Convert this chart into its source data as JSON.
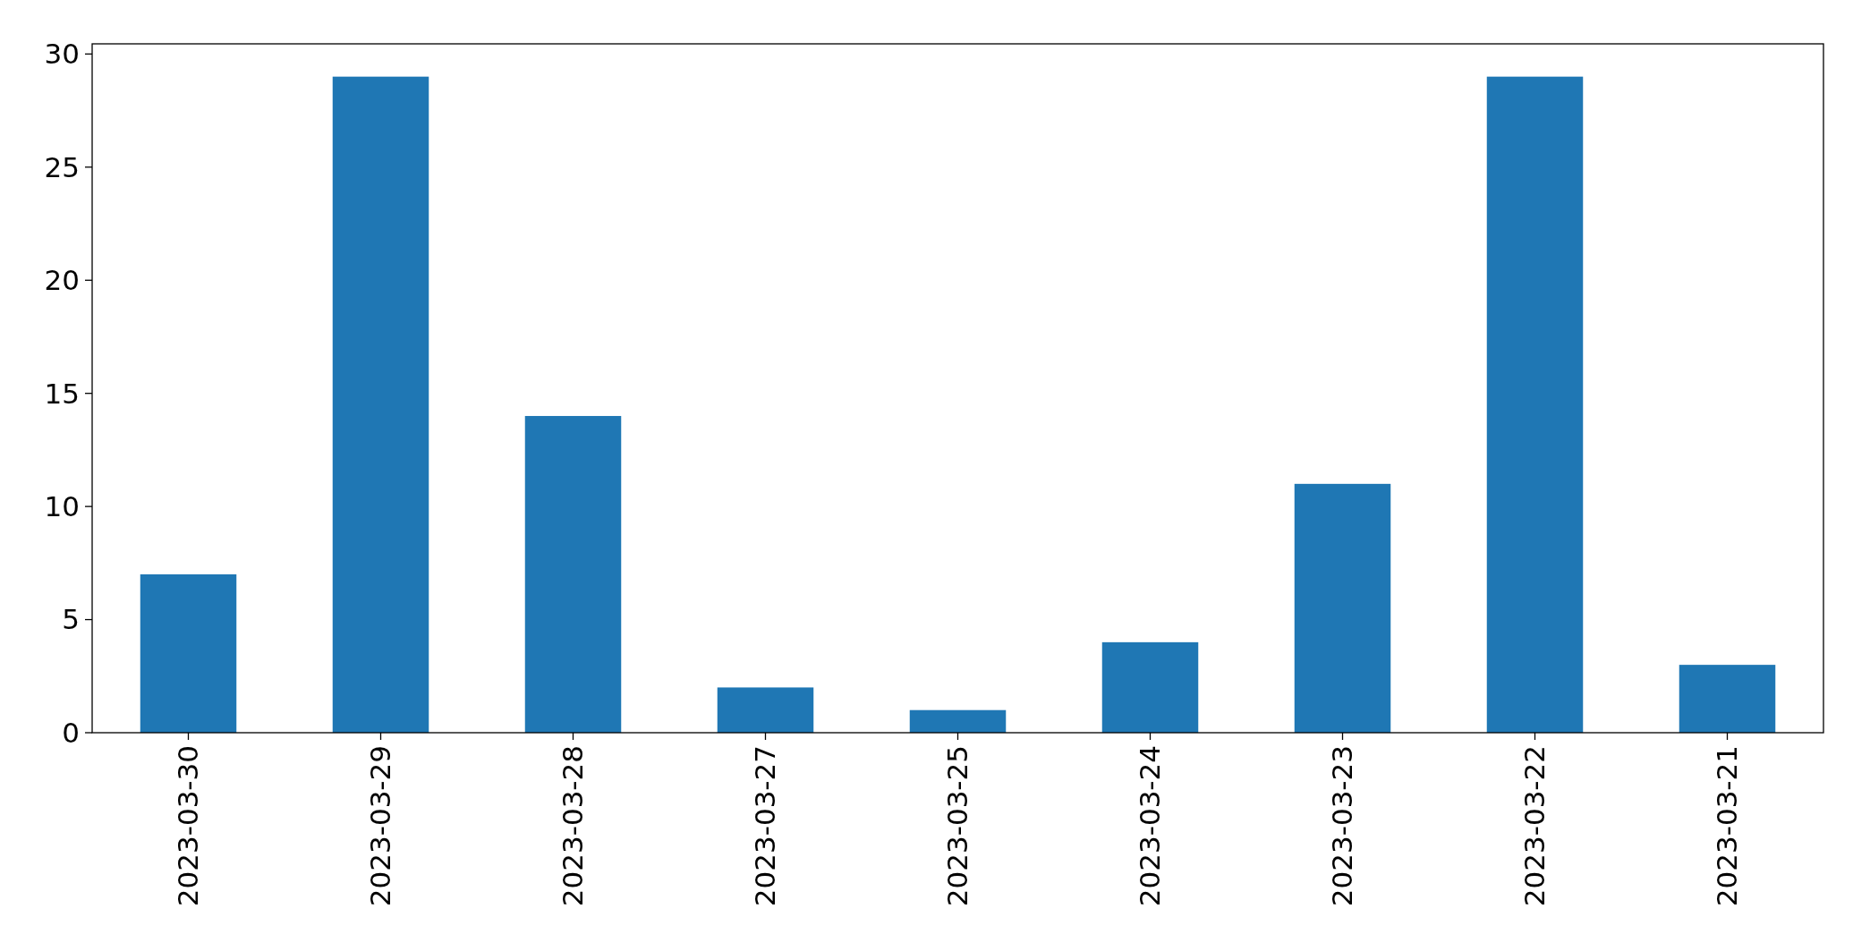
{
  "chart_data": {
    "type": "bar",
    "categories": [
      "2023-03-30",
      "2023-03-29",
      "2023-03-28",
      "2023-03-27",
      "2023-03-25",
      "2023-03-24",
      "2023-03-23",
      "2023-03-22",
      "2023-03-21"
    ],
    "values": [
      7,
      29,
      14,
      2,
      1,
      4,
      11,
      29,
      3
    ],
    "color": "#1f77b4",
    "ylim": [
      0,
      30.45
    ],
    "yticks": [
      0,
      5,
      10,
      15,
      20,
      25,
      30
    ],
    "grid": false
  }
}
